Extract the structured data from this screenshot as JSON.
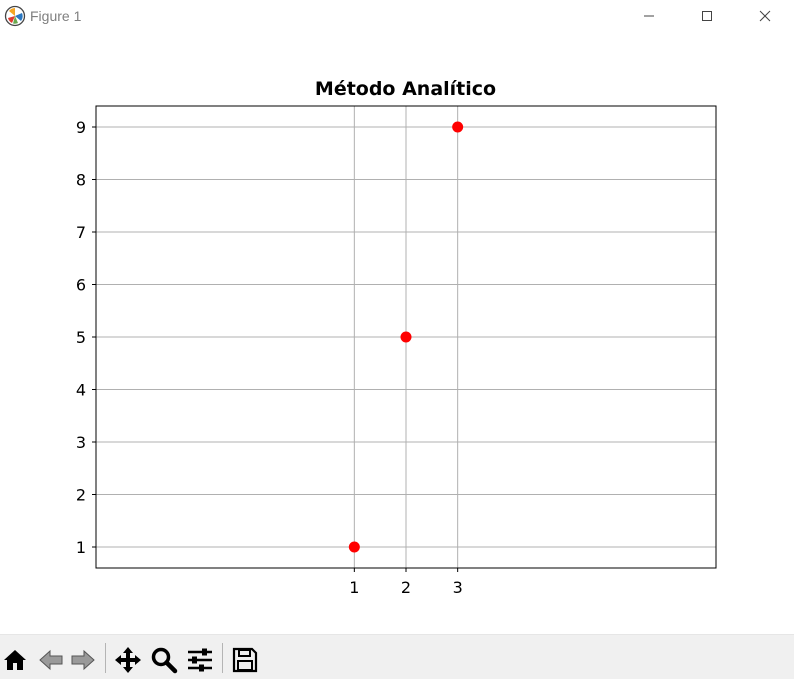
{
  "window": {
    "title": "Figure 1",
    "controls": [
      "minimize-icon",
      "maximize-icon",
      "close-icon"
    ]
  },
  "toolbar": {
    "buttons": [
      "home-icon",
      "back-arrow-icon",
      "forward-arrow-icon",
      "pan-icon",
      "zoom-icon",
      "configure-subplots-icon",
      "save-icon"
    ]
  },
  "colors": {
    "marker": "#ff0000",
    "grid": "#b0b0b0",
    "axes": "#000000",
    "toolbar_bg": "#f0f0f0"
  },
  "chart_data": {
    "type": "scatter",
    "title": "Método Analítico",
    "xlabel": "",
    "ylabel": "",
    "x": [
      1,
      2,
      3
    ],
    "y": [
      1,
      5,
      9
    ],
    "xticks": [
      1,
      2,
      3
    ],
    "yticks": [
      1,
      2,
      3,
      4,
      5,
      6,
      7,
      8,
      9
    ],
    "xlim": [
      -4,
      8
    ],
    "ylim": [
      0.6,
      9.4
    ],
    "grid": true,
    "marker": "circle"
  }
}
